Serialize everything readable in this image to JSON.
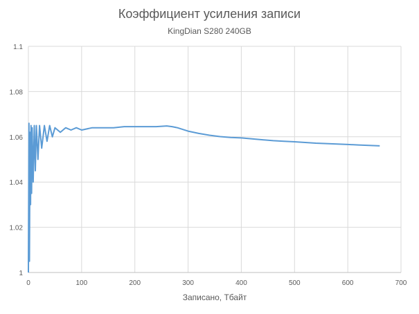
{
  "chart_data": {
    "type": "line",
    "title": "Коэффициент усиления записи",
    "subtitle": "KingDian S280 240GB",
    "xlabel": "Записано, Тбайт",
    "ylabel": "",
    "xlim": [
      0,
      700
    ],
    "ylim": [
      1,
      1.1
    ],
    "x_ticks": [
      "0",
      "100",
      "200",
      "300",
      "400",
      "500",
      "600",
      "700"
    ],
    "y_ticks": [
      "1",
      "1.02",
      "1.04",
      "1.06",
      "1.08",
      "1.1"
    ],
    "grid": true,
    "legend": "none",
    "series": [
      {
        "color": "#5b9bd5",
        "x": [
          0,
          1,
          2,
          3,
          4,
          5,
          6,
          7,
          9,
          11,
          13,
          15,
          18,
          21,
          25,
          30,
          35,
          40,
          45,
          50,
          60,
          70,
          80,
          90,
          100,
          120,
          140,
          160,
          180,
          200,
          220,
          240,
          260,
          270,
          280,
          300,
          320,
          340,
          360,
          380,
          400,
          420,
          440,
          460,
          480,
          500,
          520,
          540,
          560,
          580,
          600,
          620,
          640,
          660
        ],
        "y": [
          1.0,
          1.066,
          1.005,
          1.062,
          1.03,
          1.065,
          1.035,
          1.064,
          1.04,
          1.065,
          1.045,
          1.065,
          1.05,
          1.065,
          1.055,
          1.065,
          1.058,
          1.065,
          1.06,
          1.064,
          1.062,
          1.064,
          1.063,
          1.064,
          1.063,
          1.064,
          1.064,
          1.064,
          1.0645,
          1.0645,
          1.0645,
          1.0645,
          1.0648,
          1.0645,
          1.064,
          1.0625,
          1.0615,
          1.0607,
          1.0601,
          1.0597,
          1.0595,
          1.0591,
          1.0587,
          1.0583,
          1.058,
          1.0578,
          1.0575,
          1.0572,
          1.057,
          1.0568,
          1.0566,
          1.0564,
          1.0562,
          1.056
        ]
      }
    ]
  }
}
